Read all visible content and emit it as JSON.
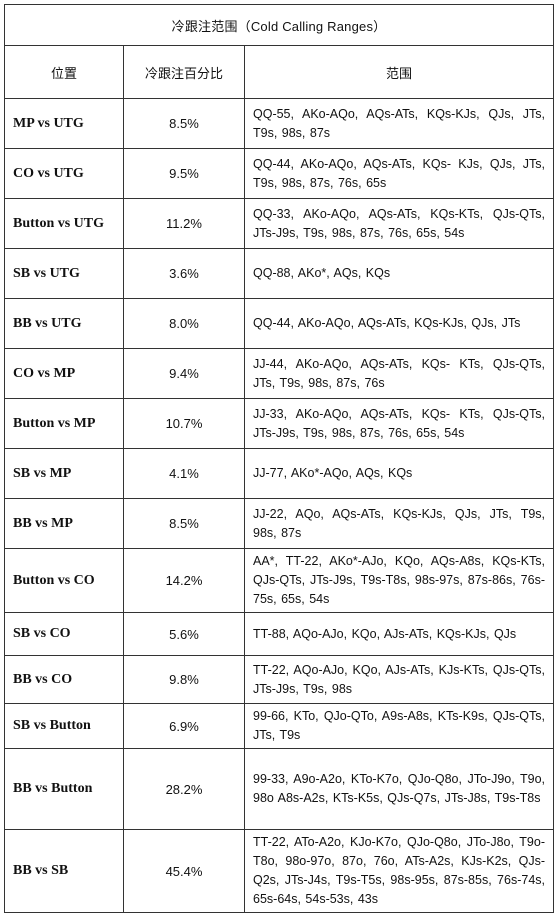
{
  "table": {
    "title": "冷跟注范围（Cold Calling Ranges）",
    "headers": {
      "position": "位置",
      "percent": "冷跟注百分比",
      "range": "范围"
    },
    "rows": [
      {
        "position": "MP vs UTG",
        "percent": "8.5%",
        "range": "QQ-55, AKo-AQo, AQs-ATs, KQs-KJs, QJs, JTs, T9s, 98s, 87s"
      },
      {
        "position": "CO vs UTG",
        "percent": "9.5%",
        "range": "QQ-44, AKo-AQo, AQs-ATs, KQs- KJs, QJs, JTs, T9s, 98s, 87s, 76s, 65s"
      },
      {
        "position": "Button vs UTG",
        "percent": "11.2%",
        "range": "QQ-33, AKo-AQo, AQs-ATs, KQs-KTs, QJs-QTs, JTs-J9s, T9s, 98s, 87s, 76s, 65s, 54s"
      },
      {
        "position": "SB vs UTG",
        "percent": "3.6%",
        "range": "QQ-88, AKo*, AQs, KQs"
      },
      {
        "position": "BB vs UTG",
        "percent": "8.0%",
        "range": "QQ-44, AKo-AQo, AQs-ATs, KQs-KJs, QJs, JTs"
      },
      {
        "position": "CO vs MP",
        "percent": "9.4%",
        "range": "JJ-44, AKo-AQo, AQs-ATs, KQs- KTs, QJs-QTs, JTs, T9s, 98s, 87s, 76s"
      },
      {
        "position": "Button vs MP",
        "percent": "10.7%",
        "range": "JJ-33, AKo-AQo, AQs-ATs, KQs- KTs, QJs-QTs, JTs-J9s, T9s, 98s, 87s, 76s, 65s, 54s"
      },
      {
        "position": "SB vs MP",
        "percent": "4.1%",
        "range": "JJ-77, AKo*-AQo, AQs, KQs"
      },
      {
        "position": "BB vs MP",
        "percent": "8.5%",
        "range": "JJ-22, AQo, AQs-ATs, KQs-KJs, QJs, JTs, T9s, 98s, 87s"
      },
      {
        "position": "Button vs CO",
        "percent": "14.2%",
        "range": "AA*, TT-22, AKo*-AJo, KQo, AQs-A8s, KQs-KTs, QJs-QTs, JTs-J9s, T9s-T8s, 98s-97s, 87s-86s, 76s-75s, 65s, 54s"
      },
      {
        "position": "SB vs CO",
        "percent": "5.6%",
        "range": "TT-88, AQo-AJo, KQo, AJs-ATs, KQs-KJs, QJs"
      },
      {
        "position": "BB vs CO",
        "percent": "9.8%",
        "range": "TT-22, AQo-AJo, KQo, AJs-ATs, KJs-KTs, QJs-QTs, JTs-J9s, T9s, 98s"
      },
      {
        "position": "SB vs Button",
        "percent": "6.9%",
        "range": "99-66, KTo, QJo-QTo, A9s-A8s, KTs-K9s, QJs-QTs, JTs, T9s"
      },
      {
        "position": "BB vs Button",
        "percent": "28.2%",
        "range": "99-33, A9o-A2o, KTo-K7o, QJo-Q8o, JTo-J9o, T9o, 98o A8s-A2s, KTs-K5s, QJs-Q7s, JTs-J8s, T9s-T8s"
      },
      {
        "position": "BB vs SB",
        "percent": "45.4%",
        "range": "TT-22, ATo-A2o, KJo-K7o, QJo-Q8o, JTo-J8o, T9o-T8o, 98o-97o, 87o, 76o, ATs-A2s, KJs-K2s, QJs-Q2s, JTs-J4s, T9s-T5s, 98s-95s, 87s-85s, 76s-74s, 65s-64s, 54s-53s, 43s"
      }
    ]
  }
}
